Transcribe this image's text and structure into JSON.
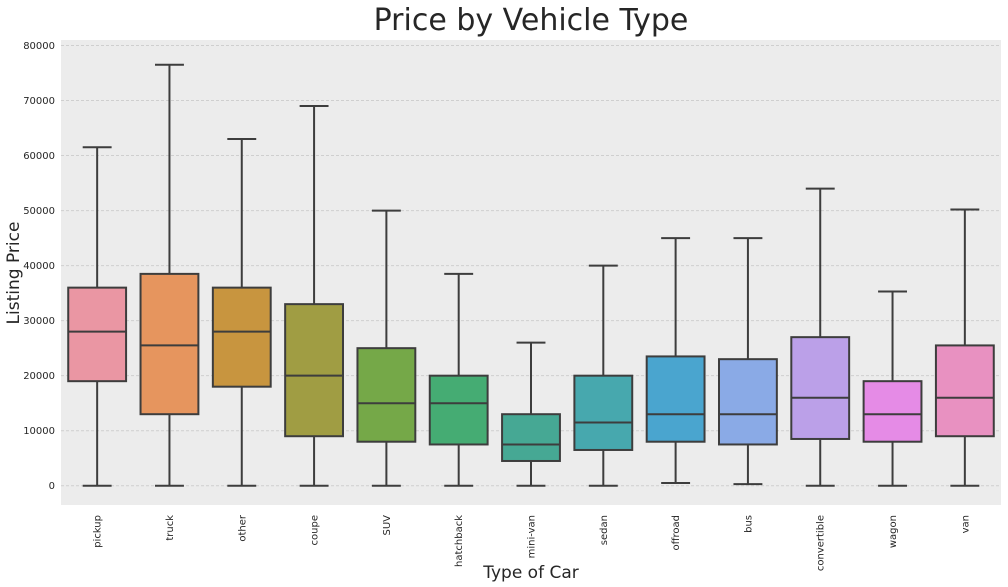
{
  "chart_data": {
    "type": "box",
    "title": "Price by Vehicle Type",
    "xlabel": "Type of Car",
    "ylabel": "Listing Price",
    "ylim": [
      -3500,
      81000
    ],
    "yticks": [
      0,
      10000,
      20000,
      30000,
      40000,
      50000,
      60000,
      70000,
      80000
    ],
    "grid": true,
    "background": "#ececec",
    "categories": [
      "pickup",
      "truck",
      "other",
      "coupe",
      "SUV",
      "hatchback",
      "mini-van",
      "sedan",
      "offroad",
      "bus",
      "convertible",
      "wagon",
      "van"
    ],
    "boxes": [
      {
        "category": "pickup",
        "min": 0,
        "q1": 19000,
        "median": 28000,
        "q3": 36000,
        "max": 61500,
        "color": "#ea96a3"
      },
      {
        "category": "truck",
        "min": 0,
        "q1": 13000,
        "median": 25500,
        "q3": 38500,
        "max": 76500,
        "color": "#e6955e"
      },
      {
        "category": "other",
        "min": 0,
        "q1": 18000,
        "median": 28000,
        "q3": 36000,
        "max": 63000,
        "color": "#c8953f"
      },
      {
        "category": "coupe",
        "min": 0,
        "q1": 9000,
        "median": 20000,
        "q3": 33000,
        "max": 69000,
        "color": "#a09d43"
      },
      {
        "category": "SUV",
        "min": 0,
        "q1": 8000,
        "median": 15000,
        "q3": 25000,
        "max": 50000,
        "color": "#75a848"
      },
      {
        "category": "hatchback",
        "min": 0,
        "q1": 7500,
        "median": 15000,
        "q3": 20000,
        "max": 38500,
        "color": "#45ac73"
      },
      {
        "category": "mini-van",
        "min": 0,
        "q1": 4500,
        "median": 7500,
        "q3": 13000,
        "max": 26000,
        "color": "#46a894"
      },
      {
        "category": "sedan",
        "min": 0,
        "q1": 6500,
        "median": 11500,
        "q3": 20000,
        "max": 40000,
        "color": "#47a8ae"
      },
      {
        "category": "offroad",
        "min": 500,
        "q1": 8000,
        "median": 13000,
        "q3": 23500,
        "max": 45000,
        "color": "#4aa5cf"
      },
      {
        "category": "bus",
        "min": 300,
        "q1": 7500,
        "median": 13000,
        "q3": 23000,
        "max": 45000,
        "color": "#8aaae6"
      },
      {
        "category": "convertible",
        "min": 0,
        "q1": 8500,
        "median": 16000,
        "q3": 27000,
        "max": 54000,
        "color": "#bba0e8"
      },
      {
        "category": "wagon",
        "min": 0,
        "q1": 8000,
        "median": 13000,
        "q3": 19000,
        "max": 35300,
        "color": "#e58be6"
      },
      {
        "category": "van",
        "min": 0,
        "q1": 9000,
        "median": 16000,
        "q3": 25500,
        "max": 50200,
        "color": "#e891c1"
      }
    ]
  }
}
